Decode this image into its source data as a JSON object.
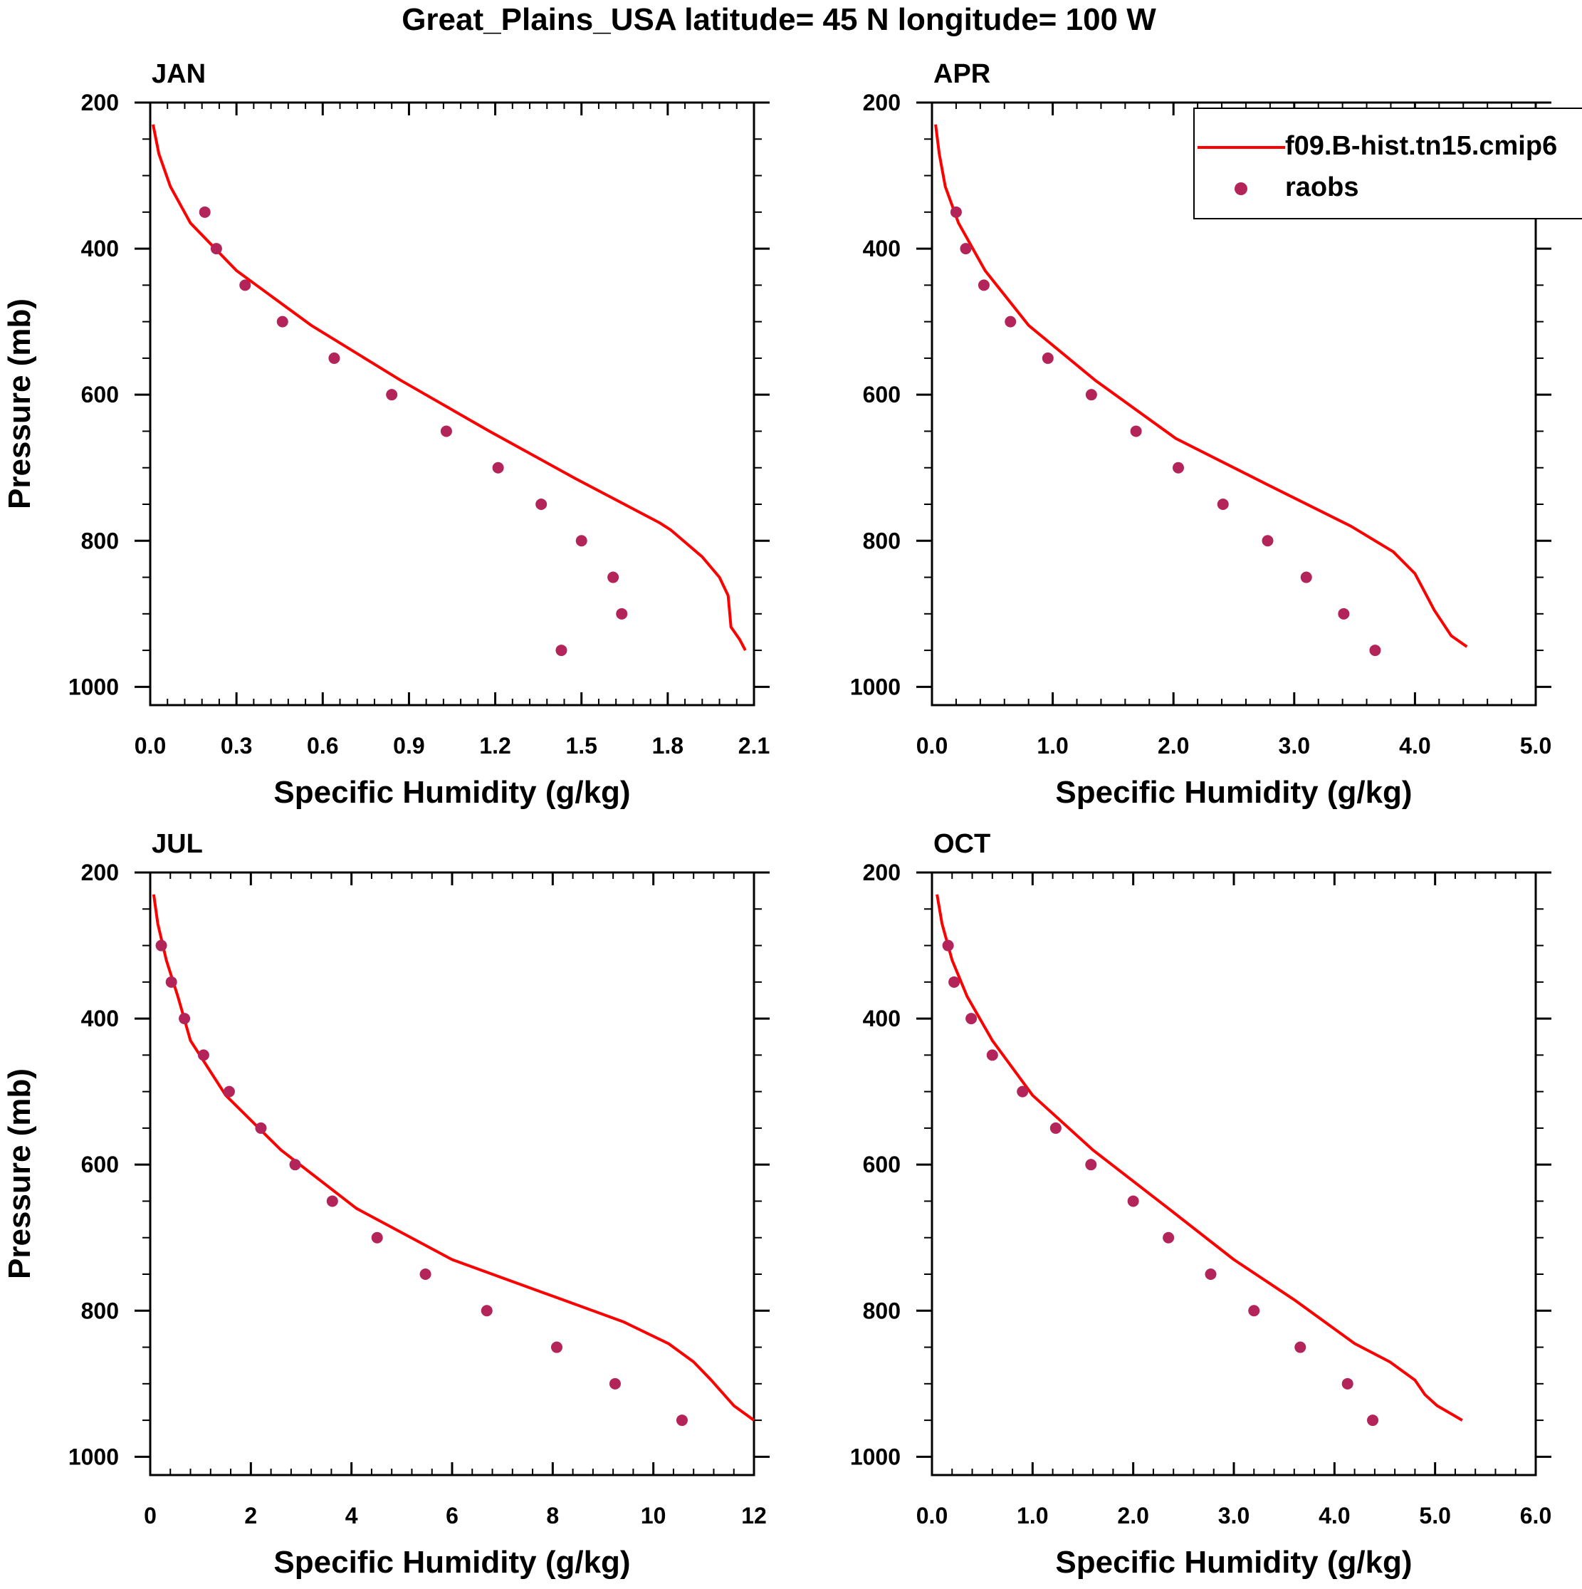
{
  "title": "Great_Plains_USA  latitude= 45 N longitude= 100 W",
  "legend": {
    "model_label": "f09.B-hist.tn15.cmip6",
    "obs_label": "raobs"
  },
  "colors": {
    "model": "#ff0000",
    "obs": "#b3245a",
    "frame": "#000000"
  },
  "chart_data": [
    {
      "type": "line",
      "panel": "JAN",
      "title": "JAN",
      "xlabel": "Specific Humidity (g/kg)",
      "ylabel": "Pressure (mb)",
      "xlim": [
        0,
        2.1
      ],
      "ylim": [
        200,
        1025
      ],
      "y_inverted": true,
      "xticks": [
        0.0,
        0.3,
        0.6,
        0.9,
        1.2,
        1.5,
        1.8,
        2.1
      ],
      "xtick_labels": [
        "0.0",
        "0.3",
        "0.6",
        "0.9",
        "1.2",
        "1.5",
        "1.8",
        "2.1"
      ],
      "yticks": [
        200,
        400,
        600,
        800,
        1000
      ],
      "ytick_labels": [
        "200",
        "400",
        "600",
        "800",
        "1000"
      ],
      "series": [
        {
          "name": "f09.B-hist.tn15.cmip6",
          "kind": "line",
          "q": [
            0.01,
            0.03,
            0.07,
            0.14,
            0.3,
            0.56,
            0.87,
            1.18,
            1.48,
            1.77,
            1.81,
            1.92,
            1.98,
            2.01,
            2.02,
            2.05,
            2.07
          ],
          "p": [
            230,
            270,
            315,
            365,
            430,
            505,
            580,
            650,
            715,
            775,
            785,
            822,
            850,
            875,
            918,
            935,
            950
          ]
        },
        {
          "name": "raobs",
          "kind": "scatter",
          "q": [
            0.19,
            0.23,
            0.33,
            0.46,
            0.64,
            0.84,
            1.03,
            1.21,
            1.36,
            1.5,
            1.61,
            1.64,
            1.43
          ],
          "p": [
            350,
            400,
            450,
            500,
            550,
            600,
            650,
            700,
            750,
            800,
            850,
            900,
            950
          ]
        }
      ]
    },
    {
      "type": "line",
      "panel": "APR",
      "title": "APR",
      "xlabel": "Specific Humidity (g/kg)",
      "ylabel": "",
      "xlim": [
        0,
        5.0
      ],
      "ylim": [
        200,
        1025
      ],
      "y_inverted": true,
      "xticks": [
        0.0,
        1.0,
        2.0,
        3.0,
        4.0,
        5.0
      ],
      "xtick_labels": [
        "0.0",
        "1.0",
        "2.0",
        "3.0",
        "4.0",
        "5.0"
      ],
      "yticks": [
        200,
        400,
        600,
        800,
        1000
      ],
      "ytick_labels": [
        "200",
        "400",
        "600",
        "800",
        "1000"
      ],
      "series": [
        {
          "name": "f09.B-hist.tn15.cmip6",
          "kind": "line",
          "q": [
            0.03,
            0.06,
            0.11,
            0.22,
            0.44,
            0.8,
            1.35,
            2.02,
            2.74,
            3.47,
            3.82,
            4.0,
            4.08,
            4.16,
            4.3,
            4.43
          ],
          "p": [
            230,
            270,
            315,
            365,
            430,
            505,
            580,
            660,
            720,
            780,
            815,
            845,
            870,
            895,
            930,
            945
          ]
        },
        {
          "name": "raobs",
          "kind": "scatter",
          "q": [
            0.2,
            0.28,
            0.43,
            0.65,
            0.96,
            1.32,
            1.69,
            2.04,
            2.41,
            2.78,
            3.1,
            3.41,
            3.67
          ],
          "p": [
            350,
            400,
            450,
            500,
            550,
            600,
            650,
            700,
            750,
            800,
            850,
            900,
            950
          ]
        }
      ]
    },
    {
      "type": "line",
      "panel": "JUL",
      "title": "JUL",
      "xlabel": "Specific Humidity (g/kg)",
      "ylabel": "Pressure (mb)",
      "xlim": [
        0,
        12
      ],
      "ylim": [
        200,
        1025
      ],
      "y_inverted": true,
      "xticks": [
        0,
        2,
        4,
        6,
        8,
        10,
        12
      ],
      "xtick_labels": [
        "0",
        "2",
        "4",
        "6",
        "8",
        "10",
        "12"
      ],
      "yticks": [
        200,
        400,
        600,
        800,
        1000
      ],
      "ytick_labels": [
        "200",
        "400",
        "600",
        "800",
        "1000"
      ],
      "series": [
        {
          "name": "f09.B-hist.tn15.cmip6",
          "kind": "line",
          "q": [
            0.07,
            0.15,
            0.32,
            0.55,
            0.8,
            1.5,
            2.6,
            4.1,
            6.0,
            8.0,
            9.4,
            10.3,
            10.8,
            11.15,
            11.6,
            12.0
          ],
          "p": [
            230,
            270,
            320,
            370,
            430,
            505,
            580,
            660,
            730,
            780,
            815,
            845,
            870,
            895,
            930,
            950
          ]
        },
        {
          "name": "raobs",
          "kind": "scatter",
          "q": [
            0.22,
            0.42,
            0.68,
            1.06,
            1.57,
            2.2,
            2.88,
            3.62,
            4.51,
            5.47,
            6.69,
            8.08,
            9.24,
            10.57
          ],
          "p": [
            300,
            350,
            400,
            450,
            500,
            550,
            600,
            650,
            700,
            750,
            800,
            850,
            900,
            950
          ]
        }
      ]
    },
    {
      "type": "line",
      "panel": "OCT",
      "title": "OCT",
      "xlabel": "Specific Humidity (g/kg)",
      "ylabel": "",
      "xlim": [
        0,
        6.0
      ],
      "ylim": [
        200,
        1025
      ],
      "y_inverted": true,
      "xticks": [
        0.0,
        1.0,
        2.0,
        3.0,
        4.0,
        5.0,
        6.0
      ],
      "xtick_labels": [
        "0.0",
        "1.0",
        "2.0",
        "3.0",
        "4.0",
        "5.0",
        "6.0"
      ],
      "yticks": [
        200,
        400,
        600,
        800,
        1000
      ],
      "ytick_labels": [
        "200",
        "400",
        "600",
        "800",
        "1000"
      ],
      "series": [
        {
          "name": "f09.B-hist.tn15.cmip6",
          "kind": "line",
          "q": [
            0.05,
            0.1,
            0.2,
            0.35,
            0.6,
            1.0,
            1.6,
            2.35,
            3.0,
            3.6,
            4.2,
            4.55,
            4.8,
            4.9,
            5.02,
            5.27
          ],
          "p": [
            230,
            270,
            320,
            370,
            430,
            505,
            580,
            660,
            730,
            785,
            845,
            870,
            895,
            915,
            930,
            950
          ]
        },
        {
          "name": "raobs",
          "kind": "scatter",
          "q": [
            0.16,
            0.22,
            0.39,
            0.6,
            0.9,
            1.23,
            1.58,
            2.0,
            2.35,
            2.77,
            3.2,
            3.66,
            4.13,
            4.38
          ],
          "p": [
            300,
            350,
            400,
            450,
            500,
            550,
            600,
            650,
            700,
            750,
            800,
            850,
            900,
            950
          ]
        }
      ]
    }
  ]
}
